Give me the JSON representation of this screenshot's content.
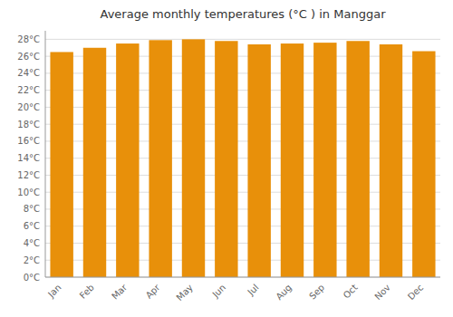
{
  "chart_data": {
    "type": "bar",
    "title": "Average monthly temperatures (°C ) in Manggar",
    "categories": [
      "Jan",
      "Feb",
      "Mar",
      "Apr",
      "May",
      "Jun",
      "Jul",
      "Aug",
      "Sep",
      "Oct",
      "Nov",
      "Dec"
    ],
    "values": [
      26.5,
      27.0,
      27.5,
      27.9,
      28.0,
      27.8,
      27.4,
      27.5,
      27.6,
      27.8,
      27.4,
      26.6
    ],
    "color": "#E8900A",
    "ylim": [
      0,
      29
    ],
    "yticks": [
      {
        "value": 0,
        "label": "0°C"
      },
      {
        "value": 2,
        "label": "2°C"
      },
      {
        "value": 4,
        "label": "4°C"
      },
      {
        "value": 6,
        "label": "6°C"
      },
      {
        "value": 8,
        "label": "8°C"
      },
      {
        "value": 10,
        "label": "10°C"
      },
      {
        "value": 12,
        "label": "12°C"
      },
      {
        "value": 14,
        "label": "14°C"
      },
      {
        "value": 16,
        "label": "16°C"
      },
      {
        "value": 18,
        "label": "18°C"
      },
      {
        "value": 20,
        "label": "20°C"
      },
      {
        "value": 22,
        "label": "22°C"
      },
      {
        "value": 24,
        "label": "24°C"
      },
      {
        "value": 26,
        "label": "26°C"
      },
      {
        "value": 28,
        "label": "28°C"
      }
    ],
    "grid": true
  }
}
